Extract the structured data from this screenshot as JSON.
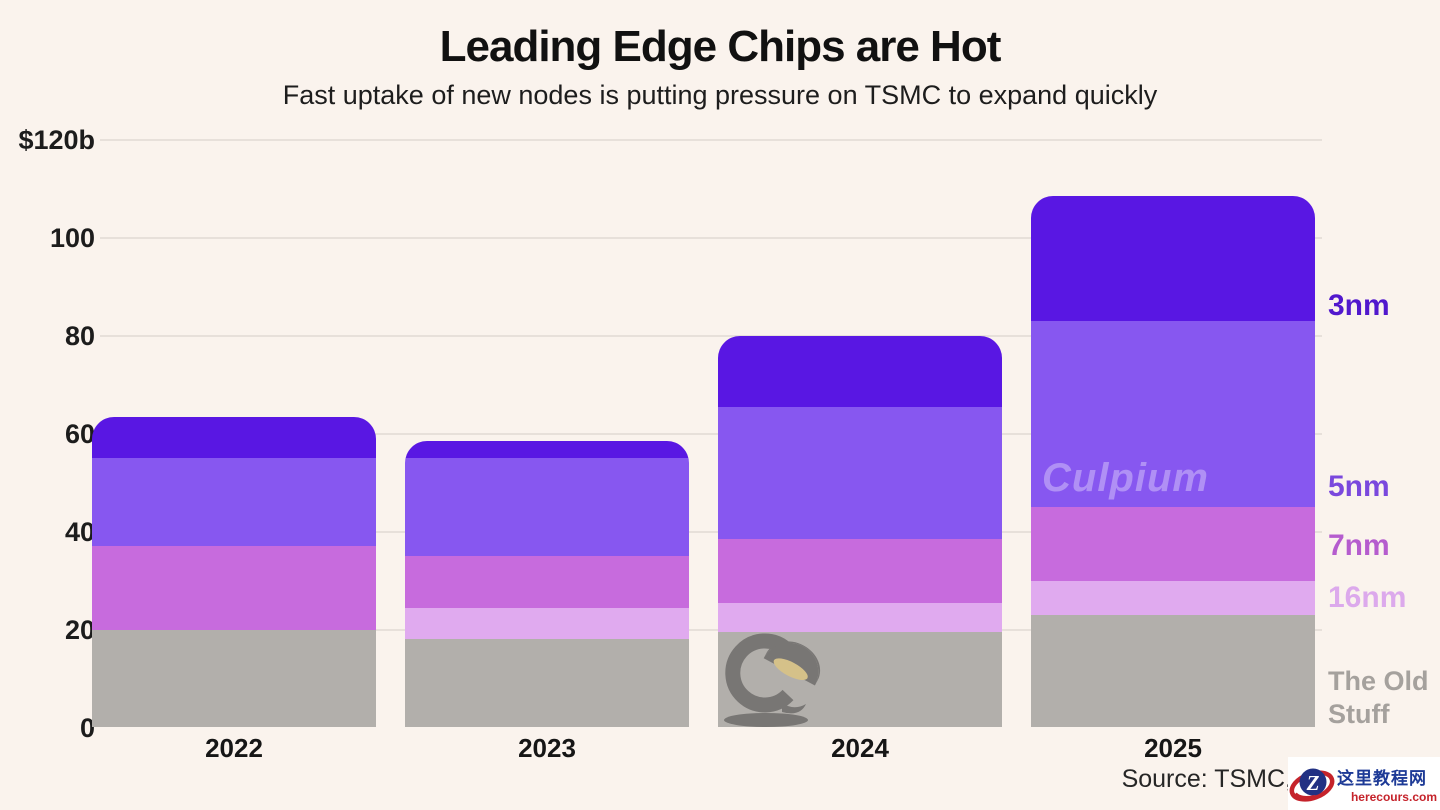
{
  "header": {
    "title": "Leading Edge Chips are Hot",
    "subtitle": "Fast uptake of new nodes is putting pressure on TSMC to expand quickly"
  },
  "source": {
    "text": "Source: TSMC,"
  },
  "watermark": {
    "culpium": "Culpium"
  },
  "site_badge": {
    "z": "Z",
    "name_cn": "这里教程网",
    "domain": "herecours.com"
  },
  "colors": {
    "background": "#FAF3ED",
    "gridline": "#E7E0DA",
    "node_3nm": "#5917E3",
    "node_5nm": "#8757F0",
    "node_7nm": "#C76BDD",
    "node_16nm": "#E0AAEF",
    "old_stuff": "#B2AFAB",
    "badge_blue": "#1d3a96",
    "badge_red": "#C5232B"
  },
  "chart_data": {
    "type": "bar",
    "stacked": true,
    "title": "Leading Edge Chips are Hot",
    "subtitle": "Fast uptake of new nodes is putting pressure on TSMC to expand quickly",
    "categories": [
      "2022",
      "2023",
      "2024",
      "2025"
    ],
    "unit": "billions USD",
    "ylim": [
      0,
      120
    ],
    "grid": "horizontal",
    "legend_position": "right",
    "yticks": [
      {
        "label": "$120b",
        "value": 120
      },
      {
        "label": "100",
        "value": 100
      },
      {
        "label": "80",
        "value": 80
      },
      {
        "label": "60",
        "value": 60
      },
      {
        "label": "40",
        "value": 40
      },
      {
        "label": "20",
        "value": 20
      },
      {
        "label": "0",
        "value": 0
      }
    ],
    "series": [
      {
        "name": "The Old Stuff",
        "color": "#B2AFAB",
        "label_color": "#A5A19D",
        "values": [
          20,
          18,
          19.5,
          23
        ]
      },
      {
        "name": "16nm",
        "color": "#E0AAEF",
        "label_color": "#DCA9EC",
        "values": [
          0,
          6.5,
          6,
          7
        ]
      },
      {
        "name": "7nm",
        "color": "#C76BDD",
        "label_color": "#B55CCE",
        "values": [
          17,
          10.5,
          13,
          15
        ]
      },
      {
        "name": "5nm",
        "color": "#8757F0",
        "label_color": "#7A48DD",
        "values": [
          18,
          20,
          27,
          38
        ]
      },
      {
        "name": "3nm",
        "color": "#5917E3",
        "label_color": "#5118CD",
        "values": [
          8.5,
          3.5,
          14.5,
          25.5
        ]
      }
    ],
    "totals": [
      63.5,
      58.5,
      80,
      108.5
    ]
  }
}
